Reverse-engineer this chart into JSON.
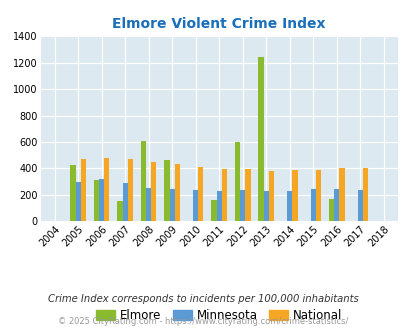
{
  "title": "Elmore Violent Crime Index",
  "years": [
    2004,
    2005,
    2006,
    2007,
    2008,
    2009,
    2010,
    2011,
    2012,
    2013,
    2014,
    2015,
    2016,
    2017,
    2018
  ],
  "elmore": [
    0,
    425,
    310,
    155,
    610,
    460,
    0,
    160,
    600,
    1240,
    0,
    0,
    170,
    0,
    0
  ],
  "minnesota": [
    0,
    295,
    318,
    285,
    250,
    240,
    235,
    225,
    235,
    225,
    225,
    245,
    240,
    235,
    0
  ],
  "national": [
    0,
    470,
    480,
    470,
    450,
    435,
    408,
    395,
    395,
    380,
    385,
    390,
    400,
    400,
    0
  ],
  "elmore_color": "#8aba2e",
  "minnesota_color": "#5b9bd5",
  "national_color": "#f5a623",
  "bg_color": "#dce9f0",
  "title_color": "#1a6fba",
  "ylabel_max": 1400,
  "yticks": [
    0,
    200,
    400,
    600,
    800,
    1000,
    1200,
    1400
  ],
  "footnote1": "Crime Index corresponds to incidents per 100,000 inhabitants",
  "footnote2": "© 2025 CityRating.com - https://www.cityrating.com/crime-statistics/",
  "bar_width": 0.22
}
